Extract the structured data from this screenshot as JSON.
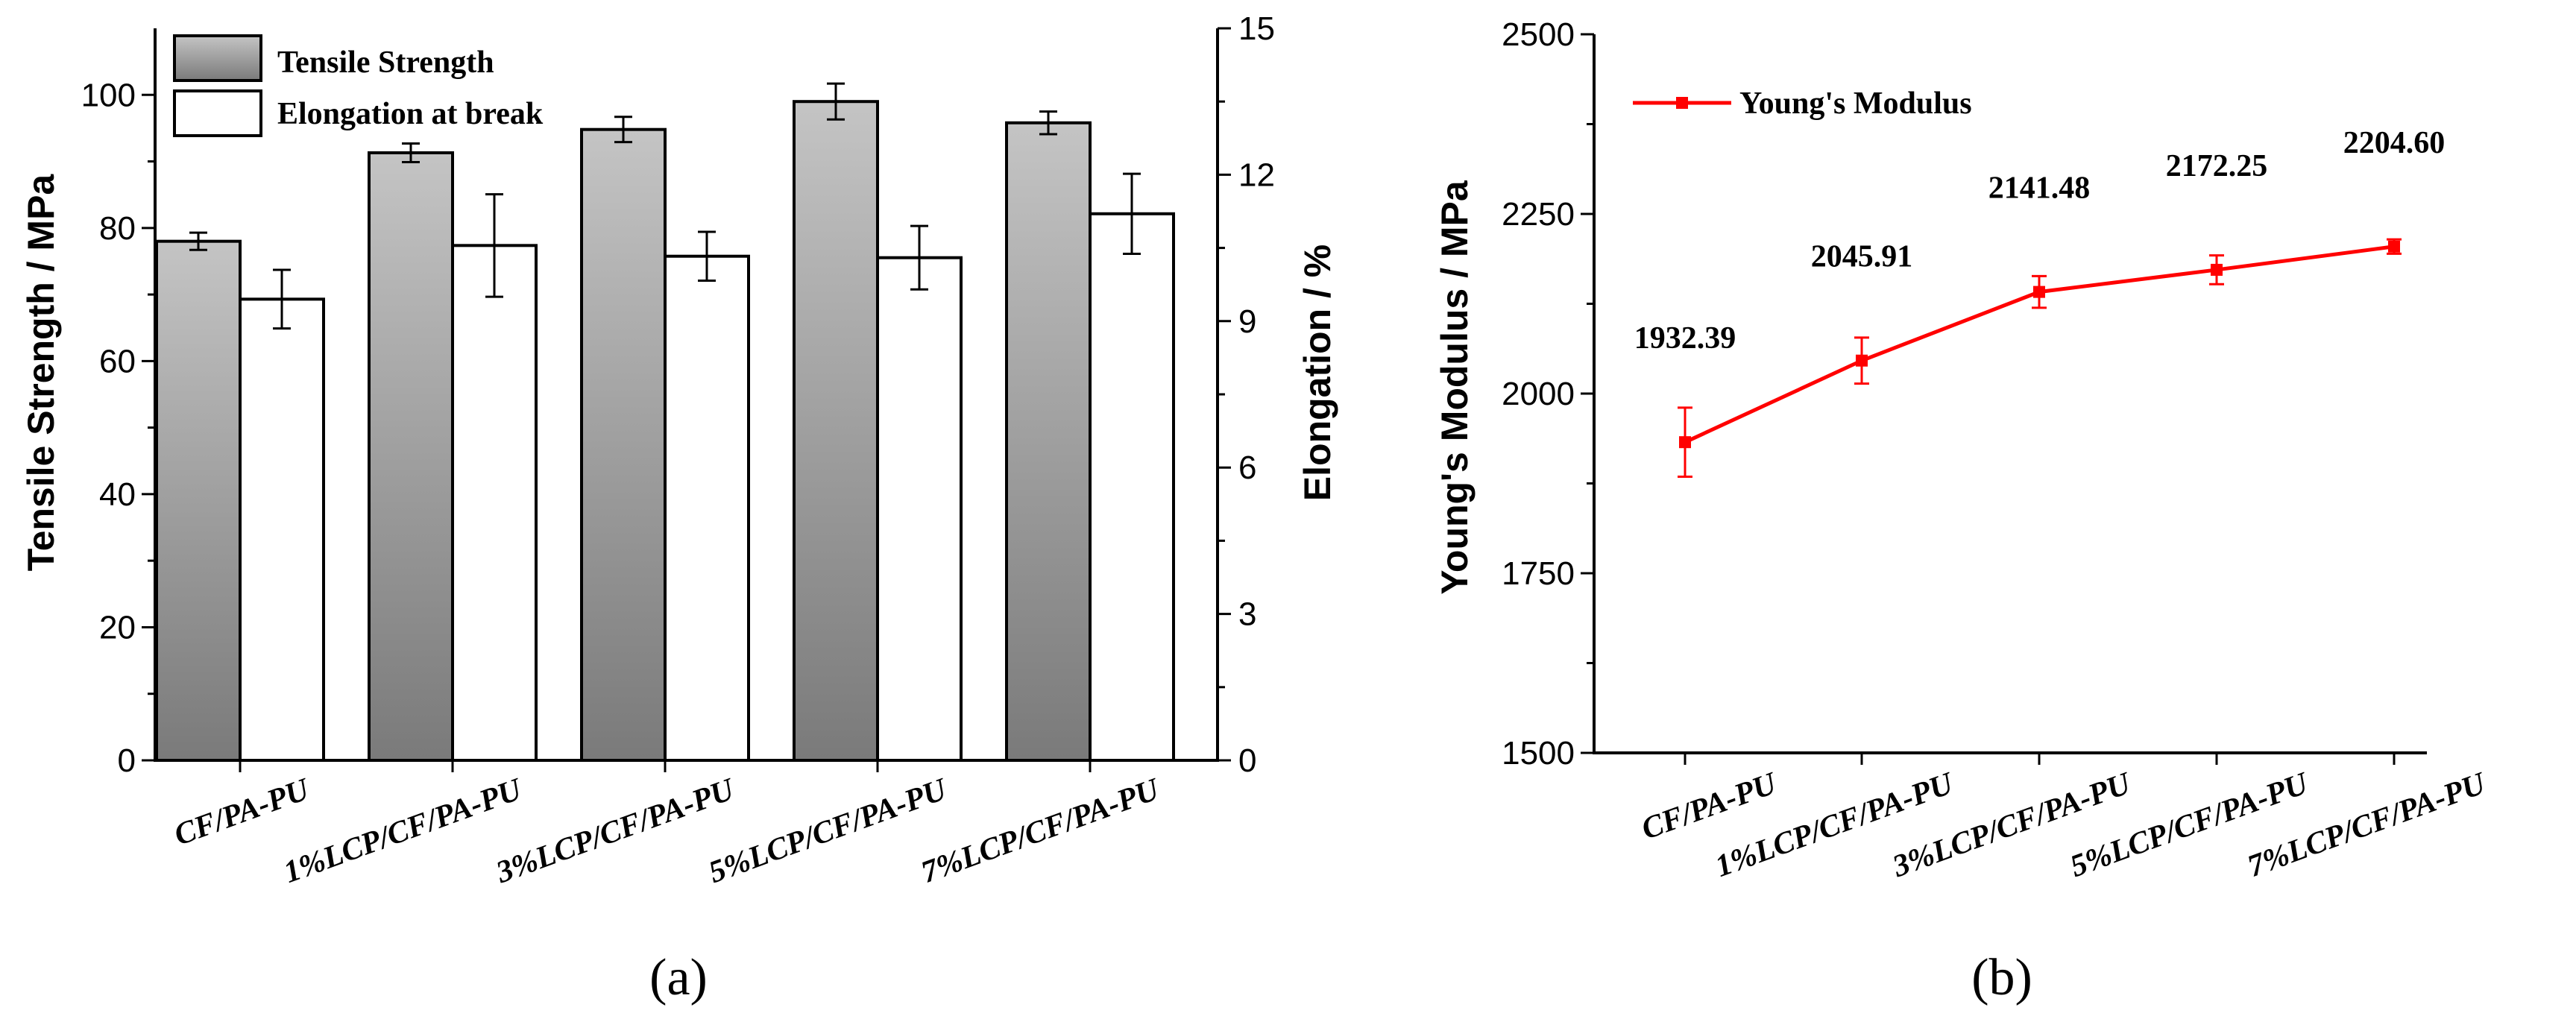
{
  "chart_data": [
    {
      "panel": "(a)",
      "type": "bar",
      "categories": [
        "CF/PA-PU",
        "1%LCP/CF/PA-PU",
        "3%LCP/CF/PA-PU",
        "5%LCP/CF/PA-PU",
        "7%LCP/CF/PA-PU"
      ],
      "ylabel": "Tensile Strength / MPa",
      "ylim": [
        0,
        110
      ],
      "yticks": [
        "0",
        "20",
        "40",
        "60",
        "80",
        "100"
      ],
      "y2label": "Elongation / %",
      "y2lim": [
        0,
        15
      ],
      "y2ticks": [
        "0",
        "3",
        "6",
        "9",
        "12",
        "15"
      ],
      "legend_position": "top-left",
      "series": [
        {
          "name": "Tensile Strength",
          "axis": "left",
          "values": [
            78.0,
            91.3,
            94.8,
            99.0,
            95.8
          ],
          "errors": [
            1.3,
            1.4,
            1.9,
            2.7,
            1.7
          ],
          "fill": "gradient-gray"
        },
        {
          "name": "Elongation at break",
          "axis": "right",
          "values": [
            9.45,
            10.55,
            10.33,
            10.3,
            11.2
          ],
          "errors": [
            0.6,
            1.05,
            0.5,
            0.65,
            0.82
          ],
          "fill": "#ffffff"
        }
      ]
    },
    {
      "panel": "(b)",
      "type": "line",
      "categories": [
        "CF/PA-PU",
        "1%LCP/CF/PA-PU",
        "3%LCP/CF/PA-PU",
        "5%LCP/CF/PA-PU",
        "7%LCP/CF/PA-PU"
      ],
      "ylabel": "Young's Modulus / MPa",
      "ylim": [
        1500,
        2500
      ],
      "yticks": [
        "1500",
        "1750",
        "2000",
        "2250",
        "2500"
      ],
      "legend_position": "top-left",
      "series": [
        {
          "name": "Young's Modulus",
          "values": [
            1932.39,
            2045.91,
            2141.48,
            2172.25,
            2204.6
          ],
          "errors": [
            48,
            32,
            22,
            20,
            10
          ],
          "labels": [
            "1932.39",
            "2045.91",
            "2141.48",
            "2172.25",
            "2204.60"
          ],
          "color": "#ff0000"
        }
      ]
    }
  ]
}
